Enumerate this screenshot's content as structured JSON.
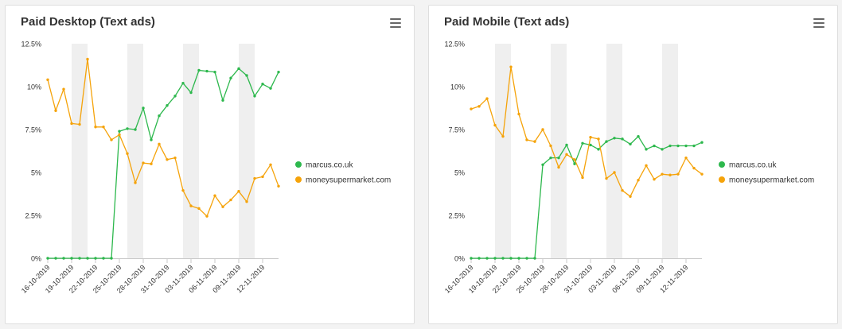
{
  "chart_data": [
    {
      "type": "line",
      "title": "Paid Desktop (Text ads)",
      "y_ticks": [
        "0%",
        "2.5%",
        "5%",
        "7.5%",
        "10%",
        "12.5%"
      ],
      "ylim": [
        0,
        12.5
      ],
      "x_ticks": [
        "16-10-2019",
        "19-10-2019",
        "22-10-2019",
        "25-10-2019",
        "28-10-2019",
        "31-10-2019",
        "03-11-2019",
        "06-11-2019",
        "09-11-2019",
        "12-11-2019"
      ],
      "weekend_bands": [
        [
          3,
          5
        ],
        [
          10,
          12
        ],
        [
          17,
          19
        ],
        [
          24,
          26
        ]
      ],
      "legend_position": "right",
      "series": [
        {
          "name": "marcus.co.uk",
          "color": "#2db84d",
          "values": [
            0,
            0,
            0,
            0,
            0,
            0,
            0,
            0,
            0,
            7.4,
            7.55,
            7.5,
            8.75,
            6.9,
            8.3,
            8.9,
            9.45,
            10.2,
            9.65,
            10.95,
            10.9,
            10.85,
            9.2,
            10.5,
            11.05,
            10.65,
            9.45,
            10.15,
            9.9,
            10.85
          ]
        },
        {
          "name": "moneysupermarket.com",
          "color": "#f5a30a",
          "values": [
            10.4,
            8.6,
            9.85,
            7.85,
            7.8,
            11.6,
            7.65,
            7.65,
            6.9,
            7.2,
            6.1,
            4.4,
            5.55,
            5.5,
            6.65,
            5.75,
            5.85,
            3.95,
            3.05,
            2.9,
            2.45,
            3.65,
            3.0,
            3.4,
            3.9,
            3.3,
            4.65,
            4.75,
            5.45,
            4.2
          ]
        }
      ]
    },
    {
      "type": "line",
      "title": "Paid Mobile (Text ads)",
      "y_ticks": [
        "0%",
        "2.5%",
        "5%",
        "7.5%",
        "10%",
        "12.5%"
      ],
      "ylim": [
        0,
        12.5
      ],
      "x_ticks": [
        "16-10-2019",
        "19-10-2019",
        "22-10-2019",
        "25-10-2019",
        "28-10-2019",
        "31-10-2019",
        "03-11-2019",
        "06-11-2019",
        "09-11-2019",
        "12-11-2019"
      ],
      "weekend_bands": [
        [
          3,
          5
        ],
        [
          10,
          12
        ],
        [
          17,
          19
        ],
        [
          24,
          26
        ]
      ],
      "legend_position": "right",
      "series": [
        {
          "name": "marcus.co.uk",
          "color": "#2db84d",
          "values": [
            0,
            0,
            0,
            0,
            0,
            0,
            0,
            0,
            0,
            5.45,
            5.85,
            5.85,
            6.6,
            5.5,
            6.7,
            6.6,
            6.35,
            6.8,
            7.0,
            6.95,
            6.65,
            7.1,
            6.35,
            6.55,
            6.35,
            6.55,
            6.55,
            6.55,
            6.55,
            6.75
          ]
        },
        {
          "name": "moneysupermarket.com",
          "color": "#f5a30a",
          "values": [
            8.7,
            8.85,
            9.3,
            7.75,
            7.1,
            11.15,
            8.4,
            6.9,
            6.8,
            7.5,
            6.55,
            5.3,
            6.05,
            5.75,
            4.7,
            7.05,
            6.95,
            4.65,
            5.0,
            3.95,
            3.6,
            4.55,
            5.4,
            4.6,
            4.9,
            4.85,
            4.9,
            5.85,
            5.25,
            4.9
          ]
        }
      ]
    }
  ]
}
